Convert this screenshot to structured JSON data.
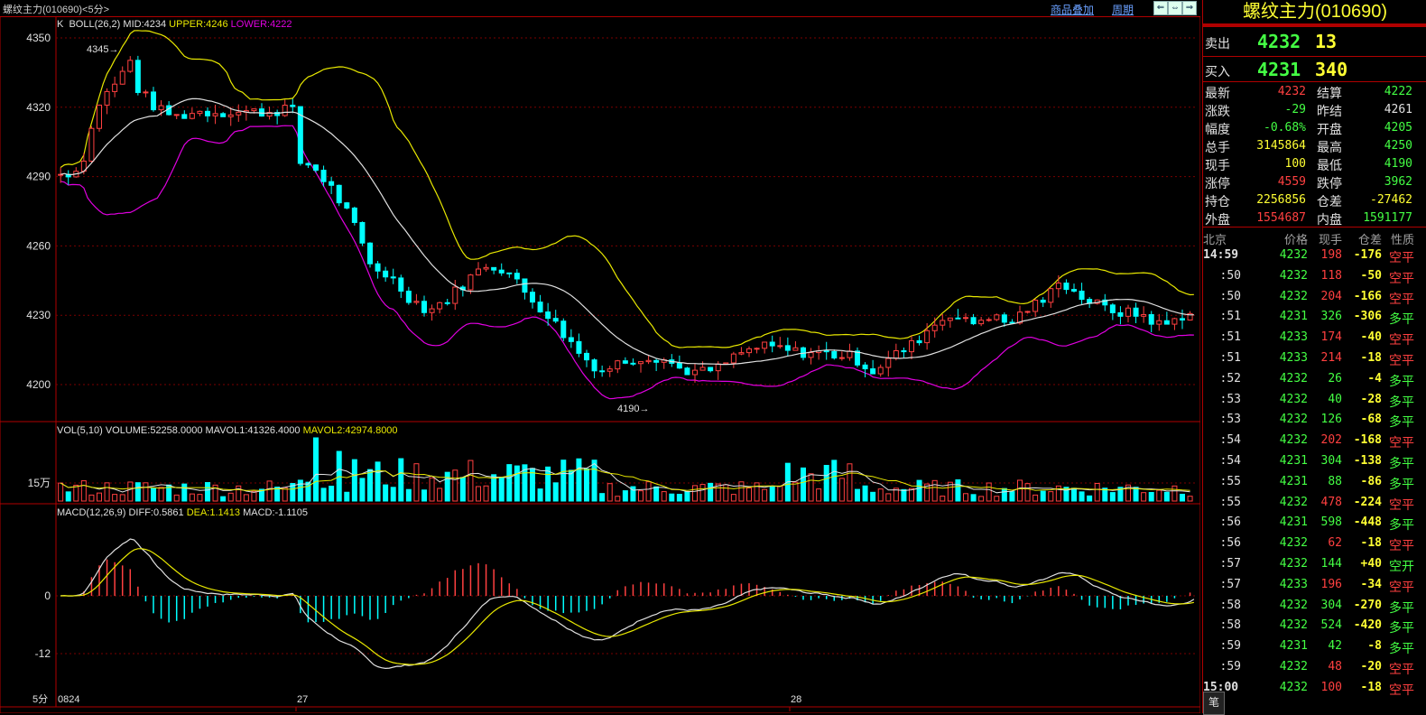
{
  "window": {
    "title": "螺纹主力(010690)<5分>",
    "overlay_link": "商品叠加",
    "period_link": "周期",
    "nav_buttons": [
      "⇐",
      "⇔",
      "⇒"
    ]
  },
  "kline": {
    "legend_prefix": "K",
    "indicator": "BOLL(26,2)",
    "mid": "MID:4234",
    "upper": "UPPER:4246",
    "lower": "LOWER:4222",
    "y_ticks": [
      "4350",
      "4320",
      "4290",
      "4260",
      "4230",
      "4200"
    ],
    "high_mark": "4345",
    "low_mark": "4190"
  },
  "volume": {
    "label": "VOL(5,10)",
    "volume": "VOLUME:52258.0000",
    "mavol1": "MAVOL1:41326.4000",
    "mavol2": "MAVOL2:42974.8000",
    "y_tick": "15万"
  },
  "macd": {
    "label": "MACD(12,26,9)",
    "diff": "DIFF:0.5861",
    "dea": "DEA:1.1413",
    "macd": "MACD:-1.1105",
    "y_ticks": [
      "0",
      "-12"
    ]
  },
  "x_axis": {
    "period": "5分",
    "dates": [
      "0824",
      "27",
      "28"
    ]
  },
  "quote": {
    "name": "螺纹主力(010690)",
    "sell": {
      "label": "卖出",
      "price": "4232",
      "qty": "13"
    },
    "buy": {
      "label": "买入",
      "price": "4231",
      "qty": "340"
    },
    "stats": [
      {
        "k1": "最新",
        "v1": "4232",
        "c1": "#ff4040",
        "k2": "结算",
        "v2": "4222",
        "c2": "#44ff44"
      },
      {
        "k1": "涨跌",
        "v1": "-29",
        "c1": "#44ff44",
        "k2": "昨结",
        "v2": "4261",
        "c2": "#e0e0e0"
      },
      {
        "k1": "幅度",
        "v1": "-0.68%",
        "c1": "#44ff44",
        "k2": "开盘",
        "v2": "4205",
        "c2": "#44ff44"
      },
      {
        "k1": "总手",
        "v1": "3145864",
        "c1": "#ffff33",
        "k2": "最高",
        "v2": "4250",
        "c2": "#44ff44"
      },
      {
        "k1": "现手",
        "v1": "100",
        "c1": "#ffff33",
        "k2": "最低",
        "v2": "4190",
        "c2": "#44ff44"
      },
      {
        "k1": "涨停",
        "v1": "4559",
        "c1": "#ff4040",
        "k2": "跌停",
        "v2": "3962",
        "c2": "#44ff44"
      },
      {
        "k1": "持仓",
        "v1": "2256856",
        "c1": "#ffff33",
        "k2": "仓差",
        "v2": "-27462",
        "c2": "#ffff33"
      },
      {
        "k1": "外盘",
        "v1": "1554687",
        "c1": "#ff4040",
        "k2": "内盘",
        "v2": "1591177",
        "c2": "#44ff44"
      }
    ],
    "tick_headers": [
      "北京",
      "价格",
      "现手",
      "仓差",
      "性质"
    ],
    "ticks": [
      {
        "t": "14:59",
        "p": "4232",
        "q": "198",
        "qc": "#ff4040",
        "d": "-176",
        "n": "空平",
        "nc": "#ff4040"
      },
      {
        "t": ":50",
        "p": "4232",
        "q": "118",
        "qc": "#ff4040",
        "d": "-50",
        "n": "空平",
        "nc": "#ff4040"
      },
      {
        "t": ":50",
        "p": "4232",
        "q": "204",
        "qc": "#ff4040",
        "d": "-166",
        "n": "空平",
        "nc": "#ff4040"
      },
      {
        "t": ":51",
        "p": "4231",
        "q": "326",
        "qc": "#44ff44",
        "d": "-306",
        "n": "多平",
        "nc": "#44ff44"
      },
      {
        "t": ":51",
        "p": "4233",
        "q": "174",
        "qc": "#ff4040",
        "d": "-40",
        "n": "空平",
        "nc": "#ff4040"
      },
      {
        "t": ":51",
        "p": "4233",
        "q": "214",
        "qc": "#ff4040",
        "d": "-18",
        "n": "空平",
        "nc": "#ff4040"
      },
      {
        "t": ":52",
        "p": "4232",
        "q": "26",
        "qc": "#44ff44",
        "d": "-4",
        "n": "多平",
        "nc": "#44ff44"
      },
      {
        "t": ":53",
        "p": "4232",
        "q": "40",
        "qc": "#44ff44",
        "d": "-28",
        "n": "多平",
        "nc": "#44ff44"
      },
      {
        "t": ":53",
        "p": "4232",
        "q": "126",
        "qc": "#44ff44",
        "d": "-68",
        "n": "多平",
        "nc": "#44ff44"
      },
      {
        "t": ":54",
        "p": "4232",
        "q": "202",
        "qc": "#ff4040",
        "d": "-168",
        "n": "空平",
        "nc": "#ff4040"
      },
      {
        "t": ":54",
        "p": "4231",
        "q": "304",
        "qc": "#44ff44",
        "d": "-138",
        "n": "多平",
        "nc": "#44ff44"
      },
      {
        "t": ":55",
        "p": "4231",
        "q": "88",
        "qc": "#44ff44",
        "d": "-86",
        "n": "多平",
        "nc": "#44ff44"
      },
      {
        "t": ":55",
        "p": "4232",
        "q": "478",
        "qc": "#ff4040",
        "d": "-224",
        "n": "空平",
        "nc": "#ff4040"
      },
      {
        "t": ":56",
        "p": "4231",
        "q": "598",
        "qc": "#44ff44",
        "d": "-448",
        "n": "多平",
        "nc": "#44ff44"
      },
      {
        "t": ":56",
        "p": "4232",
        "q": "62",
        "qc": "#ff4040",
        "d": "-18",
        "n": "空平",
        "nc": "#ff4040"
      },
      {
        "t": ":57",
        "p": "4232",
        "q": "144",
        "qc": "#44ff44",
        "d": "+40",
        "n": "空开",
        "nc": "#44ff44"
      },
      {
        "t": ":57",
        "p": "4233",
        "q": "196",
        "qc": "#ff4040",
        "d": "-34",
        "n": "空平",
        "nc": "#ff4040"
      },
      {
        "t": ":58",
        "p": "4232",
        "q": "304",
        "qc": "#44ff44",
        "d": "-270",
        "n": "多平",
        "nc": "#44ff44"
      },
      {
        "t": ":58",
        "p": "4232",
        "q": "524",
        "qc": "#44ff44",
        "d": "-420",
        "n": "多平",
        "nc": "#44ff44"
      },
      {
        "t": ":59",
        "p": "4231",
        "q": "42",
        "qc": "#44ff44",
        "d": "-8",
        "n": "多平",
        "nc": "#44ff44"
      },
      {
        "t": ":59",
        "p": "4232",
        "q": "48",
        "qc": "#ff4040",
        "d": "-20",
        "n": "空平",
        "nc": "#ff4040"
      },
      {
        "t": "15:00",
        "p": "4232",
        "q": "100",
        "qc": "#ff4040",
        "d": "-18",
        "n": "空平",
        "nc": "#ff4040"
      }
    ],
    "bottom_tab": "笔"
  },
  "colors": {
    "up": "#ff4040",
    "down": "#00ffff",
    "upper": "#e8e800",
    "mid": "#e0e0e0",
    "lower": "#e000e0",
    "grid": "#7a0000",
    "frame": "#b00000",
    "accent": "#ffff33"
  }
}
